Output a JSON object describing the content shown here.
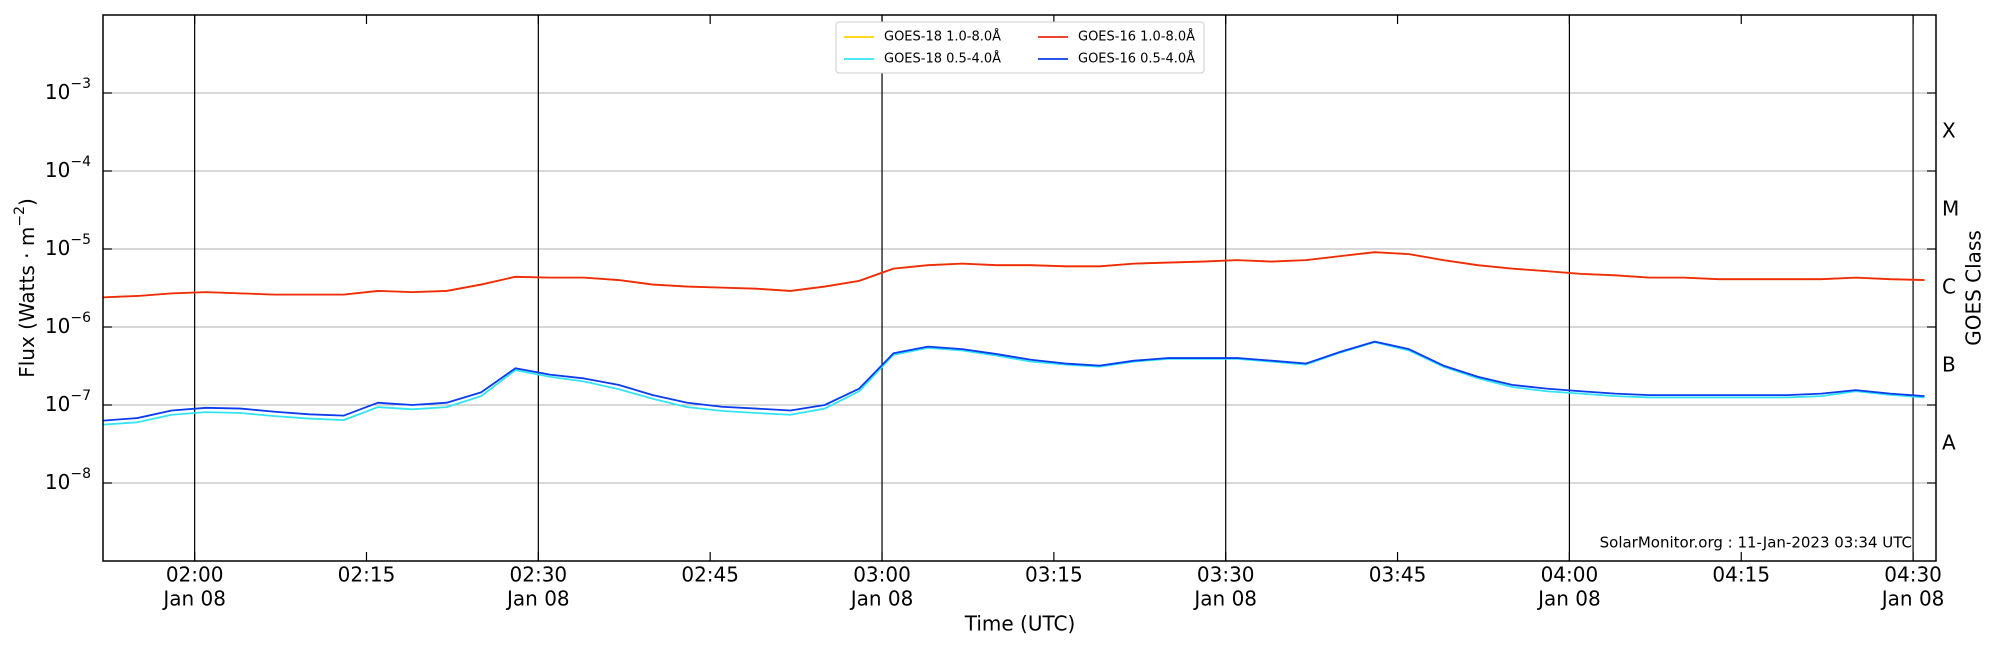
{
  "chart_data": {
    "type": "line",
    "xlabel": "Time (UTC)",
    "ylabel": [
      "Flux (Watts · m",
      "−2",
      ")"
    ],
    "y2label": "GOES Class",
    "annotation": "SolarMonitor.org : 11-Jan-2023 03:34 UTC",
    "log_y": true,
    "grid": true,
    "legend": "upper center",
    "xlim": [
      "01:52",
      "04:32"
    ],
    "ylim": [
      1e-09,
      0.01
    ],
    "xticks": [
      {
        "value": "02:00",
        "label": "02:00",
        "date": "Jan 08"
      },
      "02:15",
      {
        "value": "02:30",
        "label": "02:30",
        "date": "Jan 08"
      },
      "02:45",
      {
        "value": "03:00",
        "label": "03:00",
        "date": "Jan 08"
      },
      "03:15",
      {
        "value": "03:30",
        "label": "03:30",
        "date": "Jan 08"
      },
      "03:45",
      {
        "value": "04:00",
        "label": "04:00",
        "date": "Jan 08"
      },
      "04:15",
      {
        "value": "04:30",
        "label": "04:30",
        "date": "Jan 08"
      }
    ],
    "yticks": [
      {
        "value": 1e-08,
        "label": "10",
        "exponent": "−8"
      },
      {
        "value": 1e-07,
        "label": "10",
        "exponent": "−7"
      },
      {
        "value": 1e-06,
        "label": "10",
        "exponent": "−6"
      },
      {
        "value": 1e-05,
        "label": "10",
        "exponent": "−5"
      },
      {
        "value": 0.0001,
        "label": "10",
        "exponent": "−4"
      },
      {
        "value": 0.001,
        "label": "10",
        "exponent": "−3"
      }
    ],
    "classes": [
      {
        "value": 1e-08,
        "label": "A"
      },
      {
        "value": 1e-07,
        "label": "B"
      },
      {
        "value": 1e-06,
        "label": "C"
      },
      {
        "value": 1e-05,
        "label": "M"
      },
      {
        "value": 0.0001,
        "label": "X"
      }
    ],
    "x": [
      "01:52",
      "01:55",
      "01:58",
      "02:01",
      "02:04",
      "02:07",
      "02:10",
      "02:13",
      "02:16",
      "02:19",
      "02:22",
      "02:25",
      "02:28",
      "02:31",
      "02:34",
      "02:37",
      "02:40",
      "02:43",
      "02:46",
      "02:49",
      "02:52",
      "02:55",
      "02:58",
      "03:01",
      "03:04",
      "03:07",
      "03:10",
      "03:13",
      "03:16",
      "03:19",
      "03:22",
      "03:25",
      "03:28",
      "03:31",
      "03:34",
      "03:37",
      "03:40",
      "03:43",
      "03:46",
      "03:49",
      "03:52",
      "03:55",
      "03:58",
      "04:01",
      "04:04",
      "04:07",
      "04:10",
      "04:13",
      "04:16",
      "04:19",
      "04:22",
      "04:25",
      "04:28",
      "04:31"
    ],
    "series": [
      {
        "name": "GOES-18 1.0-8.0Å",
        "color": "#ffd000",
        "values": [
          2.4e-06,
          2.5e-06,
          2.7e-06,
          2.8e-06,
          2.7e-06,
          2.6e-06,
          2.6e-06,
          2.6e-06,
          2.9e-06,
          2.8e-06,
          2.9e-06,
          3.5e-06,
          4.4e-06,
          4.3e-06,
          4.3e-06,
          4e-06,
          3.5e-06,
          3.3e-06,
          3.2e-06,
          3.1e-06,
          2.9e-06,
          3.3e-06,
          3.9e-06,
          5.6e-06,
          6.2e-06,
          6.5e-06,
          6.2e-06,
          6.2e-06,
          6e-06,
          6e-06,
          6.5e-06,
          6.7e-06,
          6.9e-06,
          7.2e-06,
          6.9e-06,
          7.2e-06,
          8.1e-06,
          9.1e-06,
          8.6e-06,
          7.2e-06,
          6.2e-06,
          5.6e-06,
          5.2e-06,
          4.8e-06,
          4.6e-06,
          4.3e-06,
          4.3e-06,
          4.1e-06,
          4.1e-06,
          4.1e-06,
          4.1e-06,
          4.3e-06,
          4.1e-06,
          4e-06
        ]
      },
      {
        "name": "GOES-18 0.5-4.0Å",
        "color": "#33e4f2",
        "values": [
          5.6e-08,
          6e-08,
          7.5e-08,
          8.1e-08,
          7.9e-08,
          7.2e-08,
          6.7e-08,
          6.4e-08,
          9.4e-08,
          8.8e-08,
          9.4e-08,
          1.3e-07,
          2.8e-07,
          2.3e-07,
          2e-07,
          1.6e-07,
          1.2e-07,
          9.4e-08,
          8.4e-08,
          7.9e-08,
          7.5e-08,
          9e-08,
          1.5e-07,
          4.4e-07,
          5.4e-07,
          5e-07,
          4.3e-07,
          3.6e-07,
          3.3e-07,
          3.1e-07,
          3.6e-07,
          3.9e-07,
          3.9e-07,
          3.9e-07,
          3.6e-07,
          3.3e-07,
          4.7e-07,
          6.4e-07,
          5e-07,
          3.1e-07,
          2.2e-07,
          1.7e-07,
          1.5e-07,
          1.4e-07,
          1.3e-07,
          1.25e-07,
          1.25e-07,
          1.25e-07,
          1.25e-07,
          1.25e-07,
          1.3e-07,
          1.5e-07,
          1.35e-07,
          1.25e-07
        ]
      },
      {
        "name": "GOES-16 1.0-8.0Å",
        "color": "#f02a10",
        "values": [
          2.4e-06,
          2.5e-06,
          2.7e-06,
          2.8e-06,
          2.7e-06,
          2.6e-06,
          2.6e-06,
          2.6e-06,
          2.9e-06,
          2.8e-06,
          2.9e-06,
          3.5e-06,
          4.4e-06,
          4.3e-06,
          4.3e-06,
          4e-06,
          3.5e-06,
          3.3e-06,
          3.2e-06,
          3.1e-06,
          2.9e-06,
          3.3e-06,
          3.9e-06,
          5.6e-06,
          6.2e-06,
          6.5e-06,
          6.2e-06,
          6.2e-06,
          6e-06,
          6e-06,
          6.5e-06,
          6.7e-06,
          6.9e-06,
          7.2e-06,
          6.9e-06,
          7.2e-06,
          8.1e-06,
          9.1e-06,
          8.6e-06,
          7.2e-06,
          6.2e-06,
          5.6e-06,
          5.2e-06,
          4.8e-06,
          4.6e-06,
          4.3e-06,
          4.3e-06,
          4.1e-06,
          4.1e-06,
          4.1e-06,
          4.1e-06,
          4.3e-06,
          4.1e-06,
          4e-06
        ]
      },
      {
        "name": "GOES-16 0.5-4.0Å",
        "color": "#0a3cf0",
        "values": [
          6.3e-08,
          6.8e-08,
          8.5e-08,
          9.2e-08,
          9e-08,
          8.2e-08,
          7.6e-08,
          7.3e-08,
          1.07e-07,
          1e-07,
          1.07e-07,
          1.45e-07,
          2.96e-07,
          2.45e-07,
          2.19e-07,
          1.81e-07,
          1.34e-07,
          1.07e-07,
          9.5e-08,
          9e-08,
          8.5e-08,
          1e-07,
          1.62e-07,
          4.6e-07,
          5.6e-07,
          5.2e-07,
          4.5e-07,
          3.8e-07,
          3.4e-07,
          3.2e-07,
          3.7e-07,
          4e-07,
          4e-07,
          4e-07,
          3.7e-07,
          3.4e-07,
          4.8e-07,
          6.5e-07,
          5.2e-07,
          3.2e-07,
          2.3e-07,
          1.81e-07,
          1.62e-07,
          1.5e-07,
          1.4e-07,
          1.34e-07,
          1.34e-07,
          1.34e-07,
          1.34e-07,
          1.34e-07,
          1.4e-07,
          1.55e-07,
          1.4e-07,
          1.3e-07
        ]
      }
    ]
  }
}
